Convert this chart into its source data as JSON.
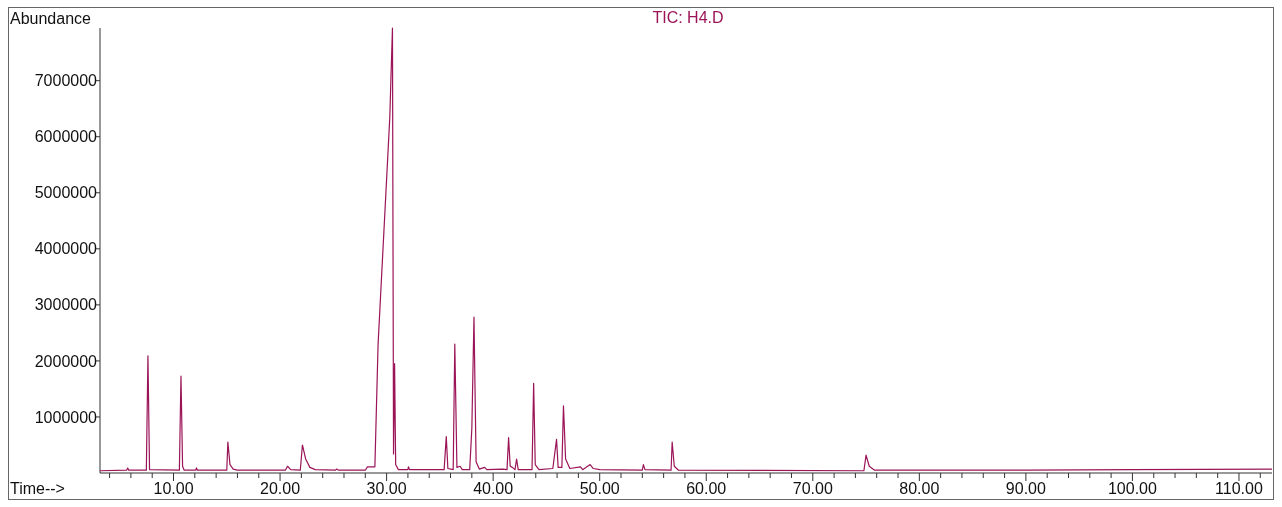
{
  "chart_data": {
    "type": "line",
    "title": "TIC: H4.D",
    "xlabel": "Time-->",
    "ylabel": "Abundance",
    "grid": false,
    "marker": "none",
    "line_style": "solid",
    "xlim": [
      3.1,
      113.1
    ],
    "ylim": [
      0,
      7940000
    ],
    "xticks": [
      {
        "value": 4,
        "label": null
      },
      {
        "value": 6,
        "label": null
      },
      {
        "value": 8,
        "label": null
      },
      {
        "value": 10,
        "label": "10.00"
      },
      {
        "value": 12,
        "label": null
      },
      {
        "value": 14,
        "label": null
      },
      {
        "value": 16,
        "label": null
      },
      {
        "value": 18,
        "label": null
      },
      {
        "value": 20,
        "label": "20.00"
      },
      {
        "value": 22,
        "label": null
      },
      {
        "value": 24,
        "label": null
      },
      {
        "value": 26,
        "label": null
      },
      {
        "value": 28,
        "label": null
      },
      {
        "value": 30,
        "label": "30.00"
      },
      {
        "value": 32,
        "label": null
      },
      {
        "value": 34,
        "label": null
      },
      {
        "value": 36,
        "label": null
      },
      {
        "value": 38,
        "label": null
      },
      {
        "value": 40,
        "label": "40.00"
      },
      {
        "value": 42,
        "label": null
      },
      {
        "value": 44,
        "label": null
      },
      {
        "value": 46,
        "label": null
      },
      {
        "value": 48,
        "label": null
      },
      {
        "value": 50,
        "label": "50.00"
      },
      {
        "value": 52,
        "label": null
      },
      {
        "value": 54,
        "label": null
      },
      {
        "value": 56,
        "label": null
      },
      {
        "value": 58,
        "label": null
      },
      {
        "value": 60,
        "label": "60.00"
      },
      {
        "value": 62,
        "label": null
      },
      {
        "value": 64,
        "label": null
      },
      {
        "value": 66,
        "label": null
      },
      {
        "value": 68,
        "label": null
      },
      {
        "value": 70,
        "label": "70.00"
      },
      {
        "value": 72,
        "label": null
      },
      {
        "value": 74,
        "label": null
      },
      {
        "value": 76,
        "label": null
      },
      {
        "value": 78,
        "label": null
      },
      {
        "value": 80,
        "label": "80.00"
      },
      {
        "value": 82,
        "label": null
      },
      {
        "value": 84,
        "label": null
      },
      {
        "value": 86,
        "label": null
      },
      {
        "value": 88,
        "label": null
      },
      {
        "value": 90,
        "label": "90.00"
      },
      {
        "value": 92,
        "label": null
      },
      {
        "value": 94,
        "label": null
      },
      {
        "value": 96,
        "label": null
      },
      {
        "value": 98,
        "label": null
      },
      {
        "value": 100,
        "label": "100.00"
      },
      {
        "value": 102,
        "label": null
      },
      {
        "value": 104,
        "label": null
      },
      {
        "value": 106,
        "label": null
      },
      {
        "value": 108,
        "label": null
      },
      {
        "value": 110,
        "label": "110.00"
      },
      {
        "value": 112,
        "label": null
      }
    ],
    "yticks": [
      1000000,
      2000000,
      3000000,
      4000000,
      5000000,
      6000000,
      7000000
    ],
    "series": [
      {
        "color": "#9b1458",
        "x": [
          3.1,
          5.6,
          5.7,
          5.8,
          7.45,
          7.6,
          7.75,
          10.55,
          10.7,
          10.85,
          11.0,
          12.1,
          12.15,
          12.25,
          15.0,
          15.1,
          15.3,
          15.6,
          16.0,
          20.5,
          20.7,
          21.0,
          21.9,
          22.1,
          22.4,
          22.8,
          23.3,
          25.2,
          25.3,
          25.5,
          28.0,
          28.2,
          28.9,
          29.2,
          30.3,
          30.4,
          30.55,
          30.65,
          30.75,
          30.85,
          31.1,
          32.0,
          32.05,
          32.15,
          35.4,
          35.6,
          35.75,
          36.25,
          36.4,
          36.6,
          36.9,
          37.1,
          37.8,
          38.0,
          38.2,
          38.4,
          38.7,
          39.2,
          39.4,
          40.9,
          41.3,
          41.45,
          41.6,
          41.8,
          42.05,
          42.2,
          42.35,
          43.65,
          43.8,
          43.95,
          44.3,
          45.6,
          45.95,
          46.1,
          46.45,
          46.6,
          46.8,
          47.2,
          48.2,
          48.4,
          49.1,
          49.4,
          50.0,
          54.0,
          54.1,
          54.25,
          56.7,
          56.8,
          57.0,
          57.4,
          74.8,
          75.0,
          75.3,
          75.8,
          90.0,
          100.0,
          113.1
        ],
        "values": [
          40000,
          50000,
          90000,
          50000,
          50000,
          2090000,
          60000,
          50000,
          1730000,
          120000,
          50000,
          50000,
          90000,
          50000,
          50000,
          550000,
          150000,
          70000,
          50000,
          50000,
          120000,
          60000,
          50000,
          500000,
          250000,
          100000,
          60000,
          50000,
          70000,
          50000,
          50000,
          110000,
          110000,
          2300000,
          6350000,
          7000000,
          7940000,
          340000,
          1950000,
          150000,
          60000,
          60000,
          110000,
          60000,
          60000,
          650000,
          80000,
          60000,
          2300000,
          100000,
          120000,
          60000,
          60000,
          800000,
          2780000,
          200000,
          70000,
          100000,
          60000,
          70000,
          60000,
          630000,
          120000,
          100000,
          60000,
          250000,
          60000,
          60000,
          1600000,
          150000,
          60000,
          80000,
          600000,
          100000,
          100000,
          1200000,
          250000,
          80000,
          110000,
          60000,
          150000,
          80000,
          60000,
          50000,
          150000,
          60000,
          50000,
          550000,
          120000,
          50000,
          40000,
          320000,
          120000,
          50000,
          50000,
          60000,
          70000
        ]
      }
    ]
  }
}
